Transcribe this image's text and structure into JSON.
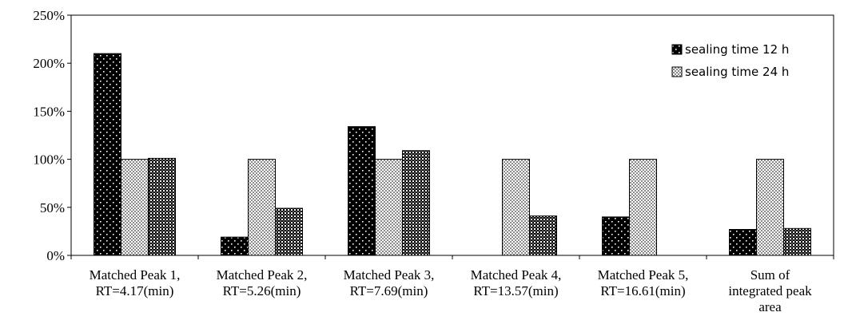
{
  "chart_data": {
    "type": "bar",
    "title": "",
    "xlabel": "",
    "ylabel": "",
    "ylim": [
      0,
      2.5
    ],
    "y_ticks": [
      "0%",
      "50%",
      "100%",
      "150%",
      "200%",
      "250%"
    ],
    "y_tick_values": [
      0,
      0.5,
      1.0,
      1.5,
      2.0,
      2.5
    ],
    "grid": false,
    "legend_position": "top-right",
    "categories": [
      [
        "Matched Peak 1,",
        "RT=4.17(min)"
      ],
      [
        "Matched Peak 2,",
        "RT=5.26(min)"
      ],
      [
        "Matched Peak 3,",
        "RT=7.69(min)"
      ],
      [
        "Matched Peak 4,",
        "RT=13.57(min)"
      ],
      [
        "Matched Peak 5,",
        "RT=16.61(min)"
      ],
      [
        "Sum of",
        "integrated peak",
        "area"
      ]
    ],
    "series": [
      {
        "name": "",
        "pattern": "dots-black",
        "values": [
          2.1,
          0.19,
          1.34,
          0,
          0.4,
          0.27
        ]
      },
      {
        "name": "",
        "pattern": "checker-light",
        "values": [
          1.0,
          1.0,
          1.0,
          1.0,
          1.0,
          1.0
        ]
      },
      {
        "name": "",
        "pattern": "checker-dark",
        "values": [
          1.01,
          0.49,
          1.09,
          0.41,
          0,
          0.28
        ]
      }
    ],
    "legend": [
      {
        "label": "sealing time 12 h",
        "pattern": "dots-black"
      },
      {
        "label": "sealing time 24 h",
        "pattern": "checker-light"
      }
    ],
    "colors": {
      "black": "#000000",
      "white": "#ffffff",
      "checker_light": "#cfcfcf",
      "checker_dark": "#4a4a4a"
    }
  }
}
